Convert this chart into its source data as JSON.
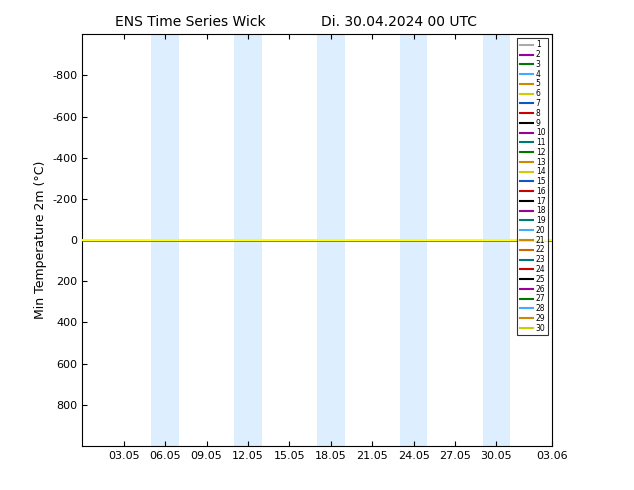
{
  "title_left": "ENS Time Series Wick",
  "title_right": "Di. 30.04.2024 00 UTC",
  "ylabel": "Min Temperature 2m (°C)",
  "ylim": [
    -1000,
    1000
  ],
  "yticks": [
    -800,
    -600,
    -400,
    -200,
    0,
    200,
    400,
    600,
    800
  ],
  "ytick_labels": [
    "-800",
    "-600",
    "-400",
    "-200",
    "0",
    "200",
    "400",
    "600",
    "800"
  ],
  "x_tick_labels": [
    "03.05",
    "06.05",
    "09.05",
    "12.05",
    "15.05",
    "18.05",
    "21.05",
    "24.05",
    "27.05",
    "30.05",
    "03.06"
  ],
  "tick_days": [
    3,
    6,
    9,
    12,
    15,
    18,
    21,
    24,
    27,
    30,
    34
  ],
  "n_members": 30,
  "member_colors": [
    "#aaaaaa",
    "#990099",
    "#007700",
    "#44aaff",
    "#cc8800",
    "#cccc00",
    "#1155cc",
    "#cc0000",
    "#000000",
    "#990099",
    "#007777",
    "#007700",
    "#cc8800",
    "#cccc00",
    "#1155cc",
    "#cc0000",
    "#000000",
    "#990099",
    "#007777",
    "#44aaff",
    "#cc8800",
    "#cc6600",
    "#007777",
    "#cc0000",
    "#000000",
    "#990099",
    "#007700",
    "#44aaff",
    "#cc8800",
    "#cccc00"
  ],
  "line_value": 0,
  "line_color": "#ffff00",
  "background_color": "#ffffff",
  "band_color": "#ddeeff",
  "band_pairs": [
    [
      5,
      7
    ],
    [
      11,
      13
    ],
    [
      17,
      19
    ],
    [
      23,
      25
    ],
    [
      29,
      31
    ]
  ],
  "xlim": [
    0,
    34
  ],
  "figsize": [
    6.34,
    4.9
  ],
  "dpi": 100
}
